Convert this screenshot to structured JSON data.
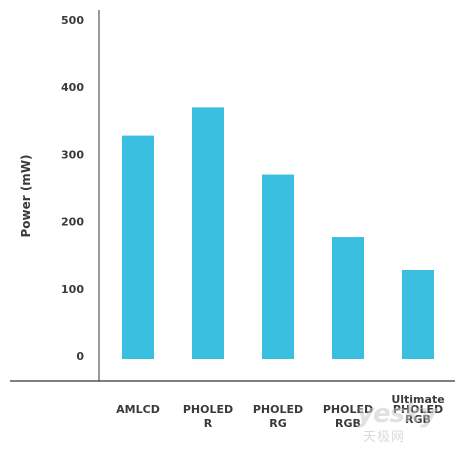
{
  "chart_data": {
    "type": "bar",
    "categories": [
      [
        "AMLCD"
      ],
      [
        "PHOLED",
        "R"
      ],
      [
        "PHOLED",
        "RG"
      ],
      [
        "PHOLED",
        "RGB"
      ],
      [
        "Ultimate",
        "PHOLED",
        "RGB"
      ]
    ],
    "values": [
      328,
      370,
      270,
      177,
      128
    ],
    "ylabel": "Power (mW)",
    "ylim": [
      0,
      500
    ],
    "yticks": [
      "0",
      "100",
      "200",
      "300",
      "400",
      "500"
    ],
    "grid": false,
    "bar_color": "#3bbfe0",
    "axis_color": "#333333"
  },
  "watermark": {
    "big": "yesky",
    "small": "天极网"
  }
}
